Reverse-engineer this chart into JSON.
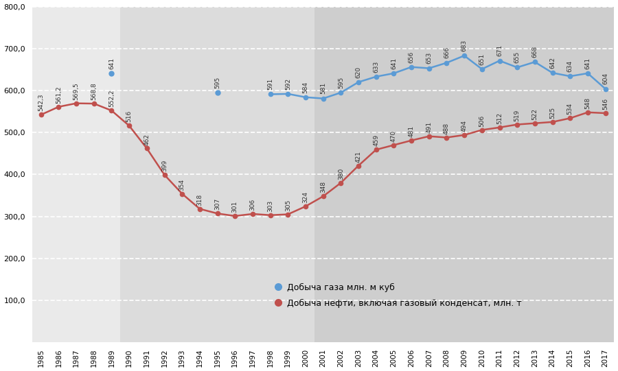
{
  "years": [
    1985,
    1986,
    1987,
    1988,
    1989,
    1990,
    1991,
    1992,
    1993,
    1994,
    1995,
    1996,
    1997,
    1998,
    1999,
    2000,
    2001,
    2002,
    2003,
    2004,
    2005,
    2006,
    2007,
    2008,
    2009,
    2010,
    2011,
    2012,
    2013,
    2014,
    2015,
    2016,
    2017
  ],
  "gas_segment1": {
    "years": [
      1989
    ],
    "values": [
      641
    ]
  },
  "gas_segment2": {
    "years": [
      1995
    ],
    "values": [
      595
    ]
  },
  "gas_segment3": {
    "years": [
      1998,
      1999,
      2000,
      2001,
      2002,
      2003,
      2004,
      2005,
      2006,
      2007,
      2008,
      2009,
      2010,
      2011,
      2012,
      2013,
      2014,
      2015,
      2016,
      2017
    ],
    "values": [
      591,
      592,
      584,
      581,
      595,
      620,
      633,
      641,
      656,
      653,
      666,
      683,
      651,
      671,
      655,
      668,
      642,
      634,
      641,
      604
    ]
  },
  "oil_years": [
    1985,
    1986,
    1987,
    1988,
    1989,
    1990,
    1991,
    1992,
    1993,
    1994,
    1995,
    1996,
    1997,
    1998,
    1999,
    2000,
    2001,
    2002,
    2003,
    2004,
    2005,
    2006,
    2007,
    2008,
    2009,
    2010,
    2011,
    2012,
    2013,
    2014,
    2015,
    2016,
    2017
  ],
  "oil_values": [
    542.3,
    561.2,
    569.5,
    568.8,
    552.2,
    516,
    462,
    399,
    354,
    318,
    307,
    301,
    306,
    303,
    305,
    324,
    348,
    380,
    421,
    459,
    470,
    481,
    491,
    488,
    494,
    506,
    512,
    519,
    522,
    525,
    534,
    548,
    546
  ],
  "gas_labels": {
    "1989": "641",
    "1995": "595",
    "1998": "591",
    "1999": "592",
    "2000": "584",
    "2001": "581",
    "2002": "595",
    "2003": "620",
    "2004": "633",
    "2005": "641",
    "2006": "656",
    "2007": "653",
    "2008": "666",
    "2009": "683",
    "2010": "651",
    "2011": "671",
    "2012": "655",
    "2013": "668",
    "2014": "642",
    "2015": "634",
    "2016": "641",
    "2017": "604"
  },
  "oil_labels": {
    "1985": "542,3",
    "1986": "561,2",
    "1987": "569,5",
    "1988": "568,8",
    "1989": "552,2",
    "1990": "516",
    "1991": "462",
    "1992": "399",
    "1993": "354",
    "1994": "318",
    "1995": "307",
    "1996": "301",
    "1997": "306",
    "1998": "303",
    "1999": "305",
    "2000": "324",
    "2001": "348",
    "2002": "380",
    "2003": "421",
    "2004": "459",
    "2005": "470",
    "2006": "481",
    "2007": "491",
    "2008": "488",
    "2009": "494",
    "2010": "506",
    "2011": "512",
    "2012": "519",
    "2013": "522",
    "2014": "525",
    "2015": "534",
    "2016": "548",
    "2017": "546"
  },
  "gas_color": "#5B9BD5",
  "oil_color": "#C0504D",
  "bg_color1": "#EAEAEA",
  "bg_color2": "#DCDCDC",
  "bg_color3": "#CECECE",
  "ylim": [
    0,
    800
  ],
  "yticks": [
    100.0,
    200.0,
    300.0,
    400.0,
    500.0,
    600.0,
    700.0,
    800.0
  ],
  "legend_gas": "Добыча газа млн. м куб",
  "legend_oil": "Добыча нефти, включая газовый конденсат, млн. т"
}
